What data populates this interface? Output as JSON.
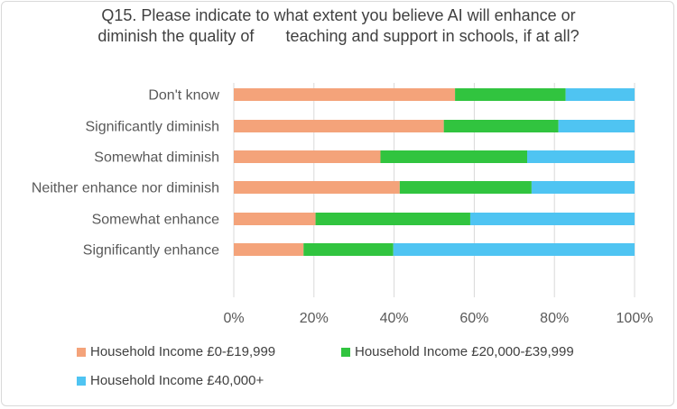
{
  "chart_data": {
    "type": "bar",
    "orientation": "horizontal",
    "stacked": "percent",
    "title_lines": [
      "Q15. Please indicate to what extent you believe AI will enhance or",
      "diminish the quality of       teaching and support in schools, if at all?"
    ],
    "categories": [
      "Don't know",
      "Significantly diminish",
      "Somewhat diminish",
      "Neither enhance nor diminish",
      "Somewhat enhance",
      "Significantly enhance"
    ],
    "series": [
      {
        "name": "Household Income £0-£19,999",
        "color": "#f4a37a",
        "values": [
          55.2,
          52.4,
          36.6,
          41.4,
          20.4,
          17.4
        ]
      },
      {
        "name": "Household Income £20,000-£39,999",
        "color": "#31c43f",
        "values": [
          27.6,
          28.6,
          36.6,
          32.9,
          38.6,
          22.4
        ]
      },
      {
        "name": "Household Income £40,000+",
        "color": "#4fc4f2",
        "values": [
          17.2,
          19.0,
          26.8,
          25.7,
          41.0,
          60.2
        ]
      }
    ],
    "xlim": [
      0,
      100
    ],
    "x_ticks": [
      "0%",
      "20%",
      "40%",
      "60%",
      "80%",
      "100%"
    ],
    "grid": "vertical",
    "legend_position": "bottom"
  }
}
